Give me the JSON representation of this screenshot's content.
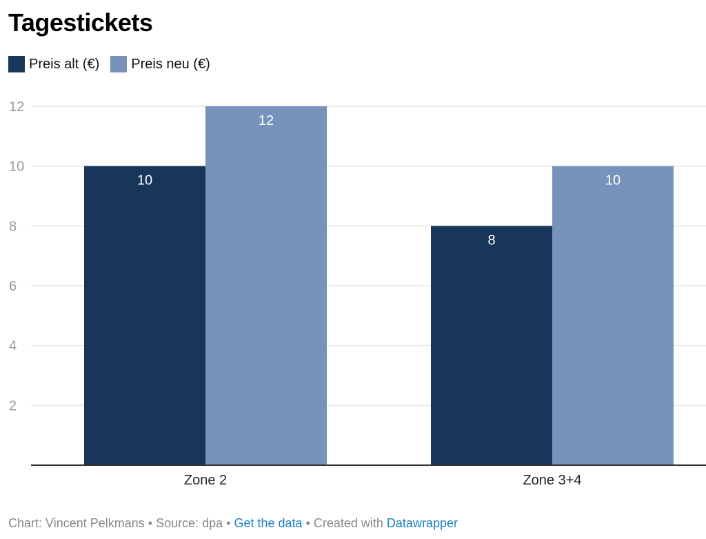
{
  "title": "Tagestickets",
  "legend": [
    {
      "label": "Preis alt (€)",
      "color": "#173659"
    },
    {
      "label": "Preis neu (€)",
      "color": "#7793bb"
    }
  ],
  "chart_data": {
    "type": "bar",
    "title": "Tagestickets",
    "categories": [
      "Zone 2",
      "Zone 3+4"
    ],
    "series": [
      {
        "name": "Preis alt (€)",
        "values": [
          10,
          8
        ],
        "color": "#173659"
      },
      {
        "name": "Preis neu (€)",
        "values": [
          12,
          10
        ],
        "color": "#7793bb"
      }
    ],
    "yticks": [
      2,
      4,
      6,
      8,
      10,
      12
    ],
    "ylim": [
      0,
      12
    ],
    "xlabel": "",
    "ylabel": "",
    "grid": true,
    "legend_position": "top-left"
  },
  "footer": {
    "chart_by": "Chart: Vincent Pelkmans",
    "sep1": " • ",
    "source": "Source: dpa",
    "sep2": " • ",
    "get_data": "Get the data",
    "sep3": " • ",
    "created_with": "Created with ",
    "datawrapper": "Datawrapper"
  }
}
